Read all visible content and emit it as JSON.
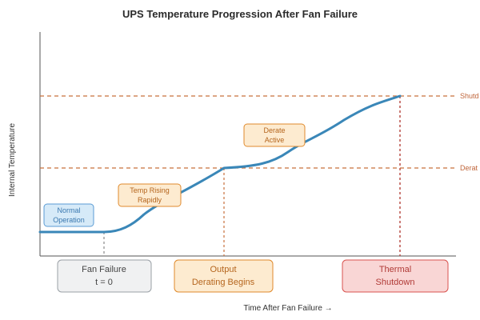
{
  "title": "UPS Temperature Progression After Fan Failure",
  "ylabel": "Internal Temperature",
  "xlabel": "Time After Fan Failure →",
  "thresholds": [
    {
      "label": "Shutd",
      "color": "#c8703c"
    },
    {
      "label": "Derat",
      "color": "#c8703c"
    }
  ],
  "annotations": [
    {
      "lines": [
        "Normal",
        "Operation"
      ],
      "fill": "#d6eaf8",
      "stroke": "#5a9bd4",
      "text_color": "#3a78b0"
    },
    {
      "lines": [
        "Temp Rising",
        "Rapidly"
      ],
      "fill": "#fdebd0",
      "stroke": "#e08a2c",
      "text_color": "#b5651d"
    },
    {
      "lines": [
        "Derate",
        "Active"
      ],
      "fill": "#fdebd0",
      "stroke": "#e08a2c",
      "text_color": "#b5651d"
    }
  ],
  "events": [
    {
      "lines": [
        "Fan Failure",
        "t = 0"
      ],
      "fill": "#f0f1f2",
      "stroke": "#9aa0a6",
      "text_color": "#444444"
    },
    {
      "lines": [
        "Output",
        "Derating Begins"
      ],
      "fill": "#fdebd0",
      "stroke": "#e08a2c",
      "text_color": "#b5651d"
    },
    {
      "lines": [
        "Thermal",
        "Shutdown"
      ],
      "fill": "#f9d6d5",
      "stroke": "#d9534f",
      "text_color": "#b03a36"
    }
  ],
  "colors": {
    "curve": "#3a87b8",
    "axis": "#555555",
    "marker_gray": "#888888",
    "marker_orange": "#c8703c",
    "marker_red": "#b5443d"
  }
}
